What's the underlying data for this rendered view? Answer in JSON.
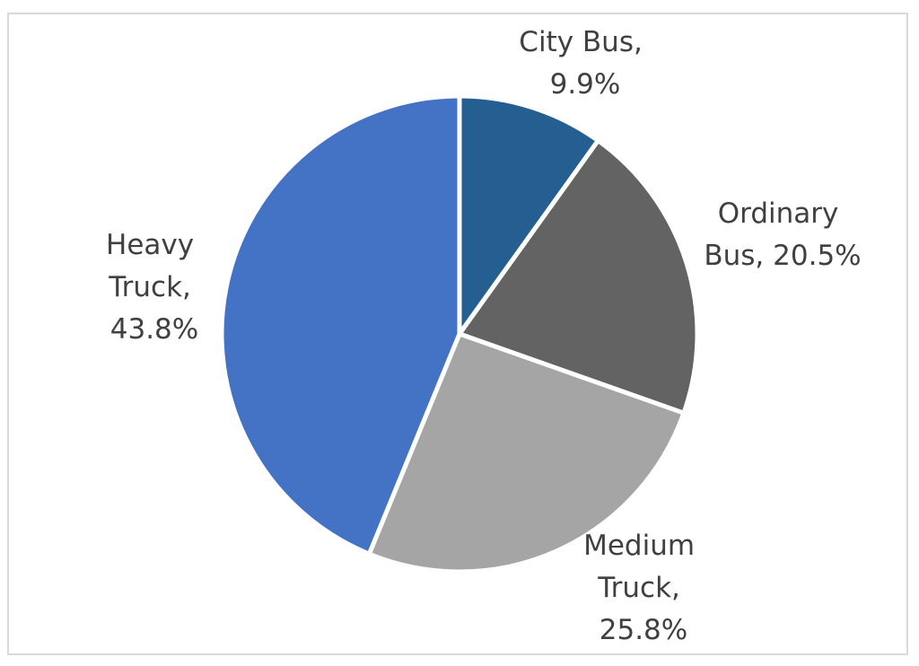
{
  "chart_data": {
    "type": "pie",
    "title": "",
    "slices": [
      {
        "label": "City Bus",
        "value": 9.9,
        "display": "9.9%",
        "color": "#255e91"
      },
      {
        "label": "Ordinary Bus",
        "value": 20.5,
        "display": "20.5%",
        "color": "#636363"
      },
      {
        "label": "Medium Truck",
        "value": 25.8,
        "display": "25.8%",
        "color": "#a5a5a5"
      },
      {
        "label": "Heavy Truck",
        "value": 43.8,
        "display": "43.8%",
        "color": "#4472c4"
      }
    ],
    "start_angle_deg": 0,
    "direction": "clockwise",
    "slice_border_color": "#ffffff",
    "legend": "none",
    "data_labels": "outside"
  }
}
